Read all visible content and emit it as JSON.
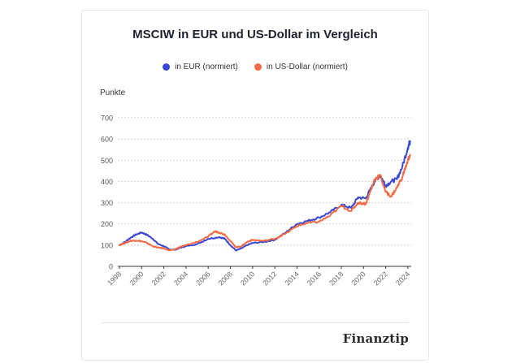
{
  "header": {
    "title": "MSCIW in EUR und US-Dollar im Vergleich"
  },
  "legend": [
    {
      "label": "in EUR (normiert)",
      "color": "#3a47d5"
    },
    {
      "label": "in US-Dollar (normiert)",
      "color": "#f26b43"
    }
  ],
  "footer": {
    "brand": "Finanztip"
  },
  "chart_data": {
    "type": "line",
    "title": "MSCIW in EUR und US-Dollar im Vergleich",
    "xlabel": "",
    "ylabel": "Punkte",
    "xlim": [
      1998,
      2024.3
    ],
    "ylim": [
      0,
      700
    ],
    "x_ticks": [
      "1998",
      "2000",
      "2002",
      "2004",
      "2006",
      "2008",
      "2010",
      "2012",
      "2014",
      "2016",
      "2018",
      "2020",
      "2022",
      "2024"
    ],
    "y_ticks": [
      "0",
      "100",
      "200",
      "300",
      "400",
      "500",
      "600",
      "700"
    ],
    "grid": "horizontal-dotted",
    "legend_position": "top-center",
    "series": [
      {
        "name": "in EUR (normiert)",
        "color": "#3a47d5",
        "x": [
          1998,
          1998.5,
          1999,
          1999.5,
          2000,
          2000.5,
          2001,
          2001.5,
          2002,
          2002.5,
          2003,
          2003.5,
          2004,
          2005,
          2006,
          2007,
          2007.5,
          2008,
          2008.5,
          2009,
          2009.5,
          2010,
          2011,
          2012,
          2013,
          2014,
          2015,
          2016,
          2017,
          2018,
          2018.9,
          2019.5,
          2020.2,
          2020.6,
          2021,
          2021.5,
          2022,
          2022.5,
          2023,
          2023.5,
          2024,
          2024.2
        ],
        "y": [
          100,
          115,
          135,
          150,
          160,
          148,
          130,
          105,
          95,
          80,
          78,
          88,
          95,
          105,
          130,
          138,
          130,
          100,
          75,
          85,
          100,
          110,
          115,
          125,
          160,
          200,
          215,
          230,
          255,
          290,
          275,
          325,
          320,
          360,
          400,
          430,
          380,
          400,
          410,
          470,
          560,
          590
        ]
      },
      {
        "name": "in US-Dollar (normiert)",
        "color": "#f26b43",
        "x": [
          1998,
          1998.5,
          1999,
          1999.5,
          2000,
          2000.5,
          2001,
          2001.5,
          2002,
          2002.5,
          2003,
          2003.5,
          2004,
          2005,
          2006,
          2006.6,
          2007,
          2007.5,
          2008,
          2008.5,
          2009,
          2009.5,
          2010,
          2011,
          2012,
          2013,
          2014,
          2015,
          2016,
          2017,
          2018,
          2018.9,
          2019.5,
          2020.2,
          2020.6,
          2021,
          2021.5,
          2022,
          2022.5,
          2023,
          2023.5,
          2024,
          2024.2
        ],
        "y": [
          100,
          110,
          120,
          122,
          118,
          110,
          95,
          88,
          85,
          75,
          80,
          92,
          100,
          115,
          140,
          165,
          160,
          150,
          120,
          90,
          95,
          115,
          125,
          120,
          130,
          155,
          190,
          205,
          210,
          240,
          285,
          260,
          300,
          295,
          350,
          410,
          430,
          350,
          330,
          370,
          420,
          500,
          525
        ]
      }
    ]
  }
}
